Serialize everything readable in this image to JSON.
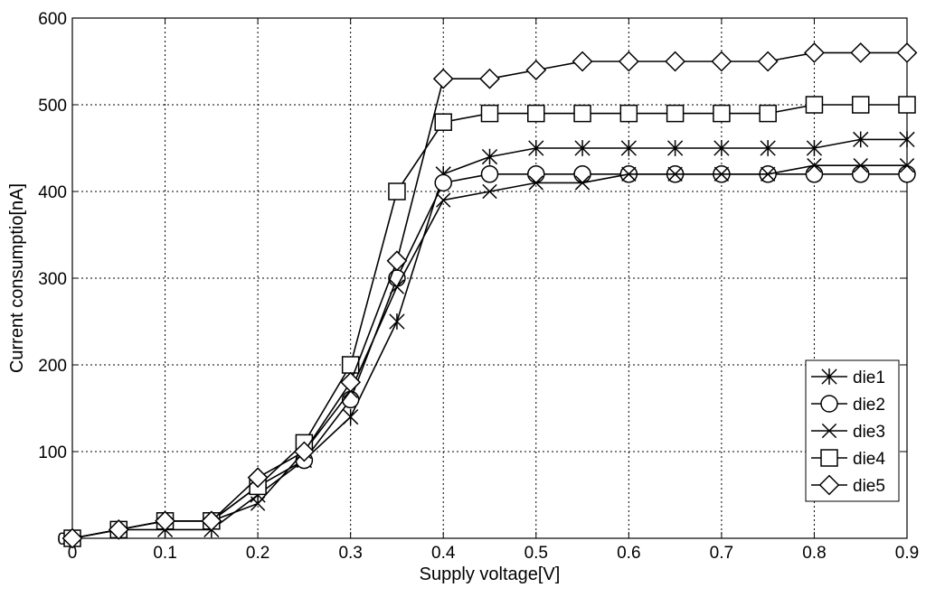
{
  "chart_data": {
    "type": "line",
    "title": "",
    "xlabel": "Supply voltage[V]",
    "ylabel": "Current consumptio[nA]",
    "xlim": [
      0,
      0.9
    ],
    "ylim": [
      0,
      600
    ],
    "x_ticks": [
      "0",
      "0.1",
      "0.2",
      "0.3",
      "0.4",
      "0.5",
      "0.6",
      "0.7",
      "0.8",
      "0.9"
    ],
    "y_ticks": [
      "0",
      "100",
      "200",
      "300",
      "400",
      "500",
      "600"
    ],
    "grid": true,
    "legend_position": "lower-right",
    "x": [
      0,
      0.05,
      0.1,
      0.15,
      0.2,
      0.25,
      0.3,
      0.35,
      0.4,
      0.45,
      0.5,
      0.55,
      0.6,
      0.65,
      0.7,
      0.75,
      0.8,
      0.85,
      0.9
    ],
    "series": [
      {
        "name": "die1",
        "marker": "asterisk",
        "values": [
          0,
          10,
          10,
          10,
          50,
          90,
          140,
          250,
          420,
          440,
          450,
          450,
          450,
          450,
          450,
          450,
          450,
          460,
          460
        ]
      },
      {
        "name": "die2",
        "marker": "circle",
        "values": [
          0,
          10,
          20,
          20,
          60,
          90,
          160,
          300,
          410,
          420,
          420,
          420,
          420,
          420,
          420,
          420,
          420,
          420,
          420
        ]
      },
      {
        "name": "die3",
        "marker": "x",
        "values": [
          0,
          10,
          20,
          20,
          40,
          100,
          170,
          290,
          390,
          400,
          410,
          410,
          420,
          420,
          420,
          420,
          430,
          430,
          430
        ]
      },
      {
        "name": "die4",
        "marker": "square",
        "values": [
          0,
          10,
          20,
          20,
          60,
          110,
          200,
          400,
          480,
          490,
          490,
          490,
          490,
          490,
          490,
          490,
          500,
          500,
          500
        ]
      },
      {
        "name": "die5",
        "marker": "diamond",
        "values": [
          0,
          10,
          20,
          20,
          70,
          100,
          180,
          320,
          530,
          530,
          540,
          550,
          550,
          550,
          550,
          550,
          560,
          560,
          560
        ]
      }
    ],
    "colors": {
      "line": "#000000",
      "grid": "#000000",
      "background": "#ffffff"
    }
  }
}
